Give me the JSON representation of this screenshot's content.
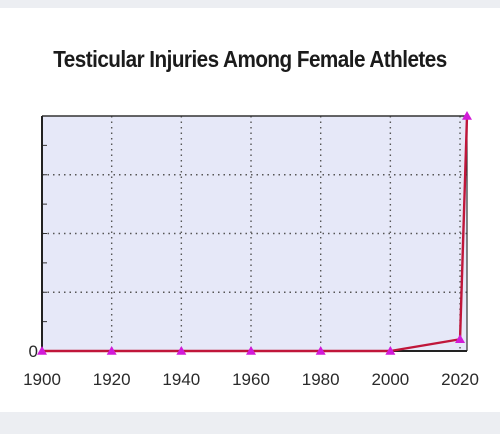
{
  "title": "Testicular Injuries Among Female Athletes",
  "chart_data": {
    "type": "line",
    "title": "Testicular Injuries Among Female Athletes",
    "xlabel": "",
    "ylabel": "",
    "x": [
      1900,
      1920,
      1940,
      1960,
      1980,
      2000,
      2020,
      2022
    ],
    "series": [
      {
        "values": [
          0,
          0,
          0,
          0,
          0,
          0,
          0.2,
          4
        ]
      }
    ],
    "xlim": [
      1900,
      2022
    ],
    "ylim": [
      0,
      4
    ],
    "x_ticks": [
      "1900",
      "1920",
      "1940",
      "1960",
      "1980",
      "2000",
      "2020"
    ],
    "y_tick_labels": [
      "0"
    ],
    "grid": true,
    "colors": {
      "line": "#c0163a",
      "marker": "#d21bd8",
      "plot_bg": "#e6e8f8",
      "grid": "#555555"
    }
  }
}
